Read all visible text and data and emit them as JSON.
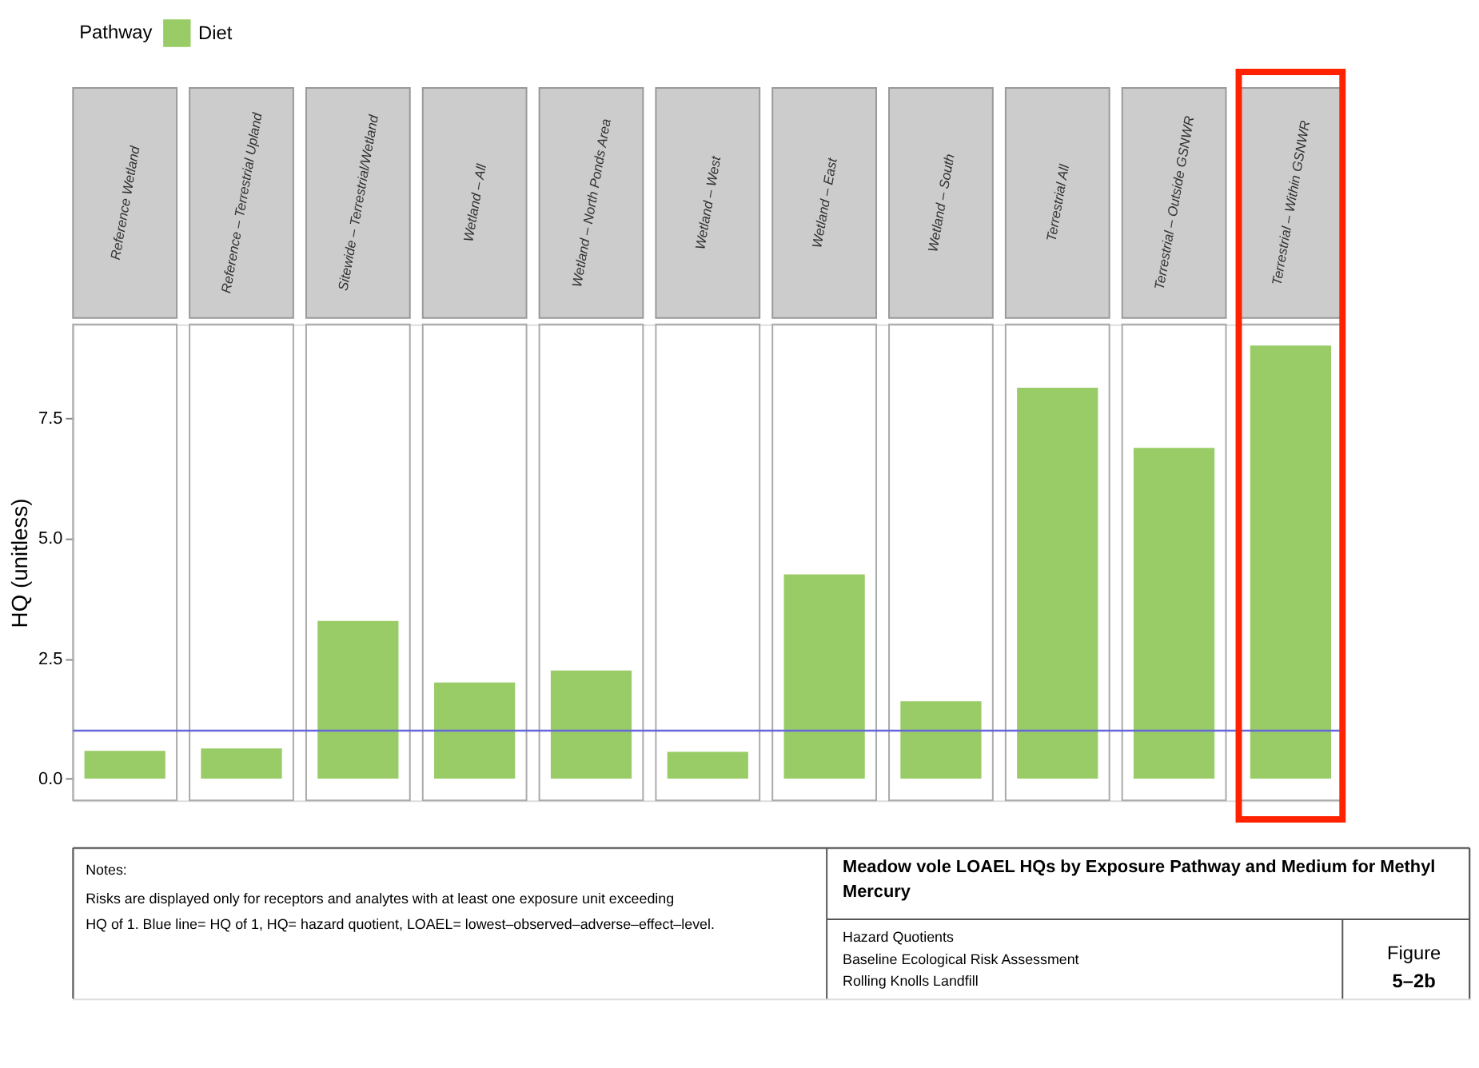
{
  "chart_data": {
    "type": "bar",
    "title": "Meadow vole LOAEL HQs by Exposure Pathway and Medium for Methyl Mercury",
    "ylabel": "HQ (unitless)",
    "legend_title": "Pathway",
    "legend": "top",
    "categories": [
      "Reference Wetland",
      "Reference – Terrestrial Upland",
      "Sitewide – Terrestrial/Wetland",
      "Wetland – All",
      "Wetland – North Ponds Area",
      "Wetland – West",
      "Wetland – East",
      "Wetland – South",
      "Terrestrial All",
      "Terrestrial – Outside GSNWR",
      "Terrestrial – Within GSNWR"
    ],
    "series": [
      {
        "name": "Diet",
        "color": "#99cc66",
        "values": [
          0.58,
          0.63,
          3.28,
          2.0,
          2.25,
          0.56,
          4.25,
          1.61,
          8.13,
          6.88,
          9.01
        ]
      }
    ],
    "ylim": [
      -0.45,
      9.45
    ],
    "yticks": [
      {
        "value": 0,
        "label": "0.0"
      },
      {
        "value": 2.5,
        "label": "2.5"
      },
      {
        "value": 5,
        "label": "5.0"
      },
      {
        "value": 7.5,
        "label": "7.5"
      }
    ],
    "tick_labels": "y",
    "grid": false,
    "ref_lines": [
      {
        "axis": "y",
        "value": 1,
        "label": null,
        "color": "#6666dd"
      }
    ],
    "annotations": [
      "Notes:",
      "Risks are displayed only for receptors and analytes with at least one exposure unit exceeding",
      "HQ of 1. Blue line= HQ of 1, HQ= hazard quotient, LOAEL= lowest–observed–adverse–effect–level.",
      "Hazard Quotients",
      "Baseline Ecological Risk Assessment",
      "Rolling Knolls Landfill",
      "Figure",
      "5–2b"
    ]
  }
}
